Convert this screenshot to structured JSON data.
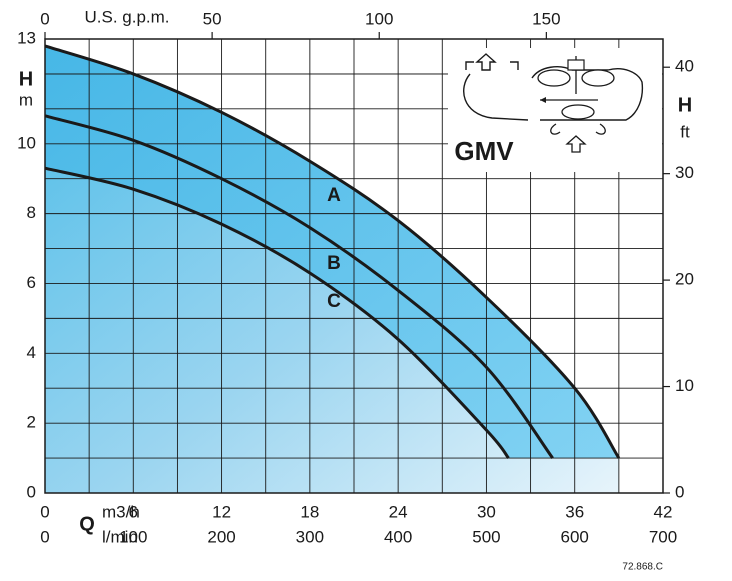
{
  "chart_data": {
    "type": "line",
    "model": "GMV",
    "code": "72.868.C",
    "x_flow_m3h": {
      "label": "m3/h",
      "min": 0,
      "max": 42,
      "ticks": [
        "0",
        "6",
        "12",
        "18",
        "24",
        "30",
        "36",
        "42"
      ]
    },
    "x_flow_lmin": {
      "label": "l/min",
      "min": 0,
      "max": 700,
      "ticks": [
        "0",
        "100",
        "200",
        "300",
        "400",
        "500",
        "600",
        "700"
      ]
    },
    "x_top_gpm": {
      "label": "U.S. g.p.m.",
      "min": 0,
      "max": 184.9,
      "ticks": [
        "0",
        "50",
        "100",
        "150"
      ],
      "tick_values": [
        0,
        50,
        100,
        150
      ]
    },
    "y_left_m": {
      "label": "H",
      "unit": "m",
      "min": 0,
      "max": 13,
      "ticks": [
        "0",
        "2",
        "4",
        "6",
        "8",
        "10",
        "13"
      ],
      "tick_values": [
        0,
        2,
        4,
        6,
        8,
        10,
        13
      ]
    },
    "y_right_ft": {
      "label": "H",
      "unit": "ft",
      "min": 0,
      "max": 42.65,
      "ticks": [
        "0",
        "10",
        "20",
        "30",
        "40"
      ],
      "tick_values": [
        0,
        10,
        20,
        30,
        40
      ]
    },
    "q_letter": "Q",
    "grid": true,
    "series": [
      {
        "name": "A",
        "x": [
          0,
          6,
          12,
          18,
          24,
          30,
          36,
          39
        ],
        "y": [
          12.8,
          12.0,
          10.9,
          9.5,
          7.8,
          5.6,
          3.0,
          1.0
        ]
      },
      {
        "name": "B",
        "x": [
          0,
          6,
          12,
          18,
          24,
          30,
          34.5
        ],
        "y": [
          10.8,
          10.1,
          9.0,
          7.6,
          5.8,
          3.6,
          1.0
        ]
      },
      {
        "name": "C",
        "x": [
          0,
          6,
          12,
          18,
          24,
          30,
          31.5
        ],
        "y": [
          9.3,
          8.7,
          7.7,
          6.3,
          4.4,
          1.8,
          1.0
        ]
      }
    ]
  }
}
